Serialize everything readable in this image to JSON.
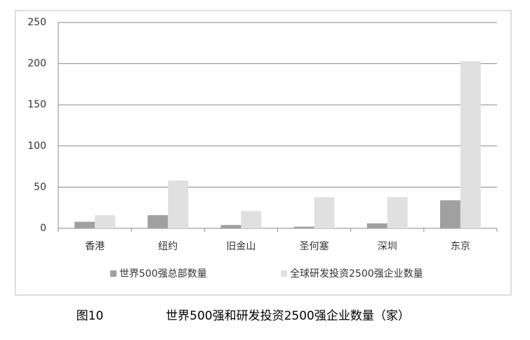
{
  "chart_data": {
    "type": "bar",
    "categories": [
      "香港",
      "纽约",
      "旧金山",
      "圣何塞",
      "深圳",
      "东京"
    ],
    "series": [
      {
        "name": "世界500强总部数量",
        "color": "#a0a0a0",
        "values": [
          8,
          16,
          4,
          2,
          6,
          34
        ]
      },
      {
        "name": "全球研发投资2500强企业数量",
        "color": "#e0e0e0",
        "values": [
          16,
          58,
          21,
          38,
          38,
          203
        ]
      }
    ],
    "ylim": [
      0,
      250
    ],
    "yticks": [
      0,
      50,
      100,
      150,
      200,
      250
    ],
    "grid": true,
    "legend": "bottom"
  },
  "caption": {
    "label": "图10",
    "text": "世界500强和研发投资2500强企业数量（家）"
  }
}
